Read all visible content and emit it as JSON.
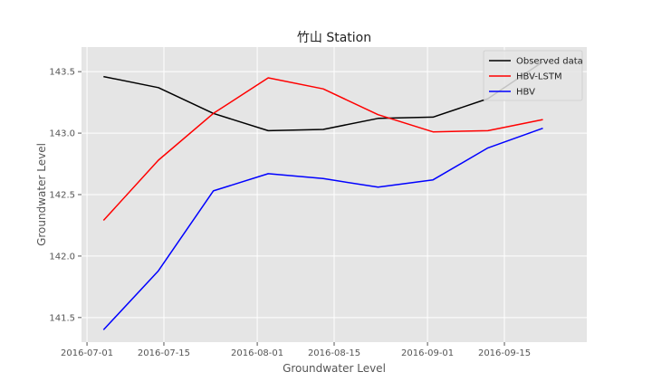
{
  "chart_data": {
    "type": "line",
    "title": "竹山 Station",
    "xlabel": "Groundwater Level",
    "ylabel": "Groundwater Level",
    "x_type": "date",
    "xlim": [
      "2016-06-30",
      "2016-09-30"
    ],
    "ylim": [
      141.3,
      143.7
    ],
    "x_ticks": [
      "2016-07-01",
      "2016-07-15",
      "2016-08-01",
      "2016-08-15",
      "2016-09-01",
      "2016-09-15"
    ],
    "y_ticks": [
      141.5,
      142.0,
      142.5,
      143.0,
      143.5
    ],
    "y_tick_labels": [
      "141.5",
      "142.0",
      "142.5",
      "143.0",
      "143.5"
    ],
    "grid": true,
    "legend_position": "top-right",
    "x": [
      "2016-07-04",
      "2016-07-14",
      "2016-07-24",
      "2016-08-03",
      "2016-08-13",
      "2016-08-23",
      "2016-09-02",
      "2016-09-12",
      "2016-09-22"
    ],
    "series": [
      {
        "name": "Observed data",
        "color": "#000000",
        "values": [
          143.46,
          143.37,
          143.16,
          143.02,
          143.03,
          143.12,
          143.13,
          143.28,
          143.58
        ]
      },
      {
        "name": "HBV-LSTM",
        "color": "#ff0000",
        "values": [
          142.29,
          142.78,
          143.16,
          143.45,
          143.36,
          143.15,
          143.01,
          143.02,
          143.11
        ]
      },
      {
        "name": "HBV",
        "color": "#0000ff",
        "values": [
          141.4,
          141.88,
          142.53,
          142.67,
          142.63,
          142.56,
          142.62,
          142.88,
          143.04
        ]
      }
    ]
  }
}
